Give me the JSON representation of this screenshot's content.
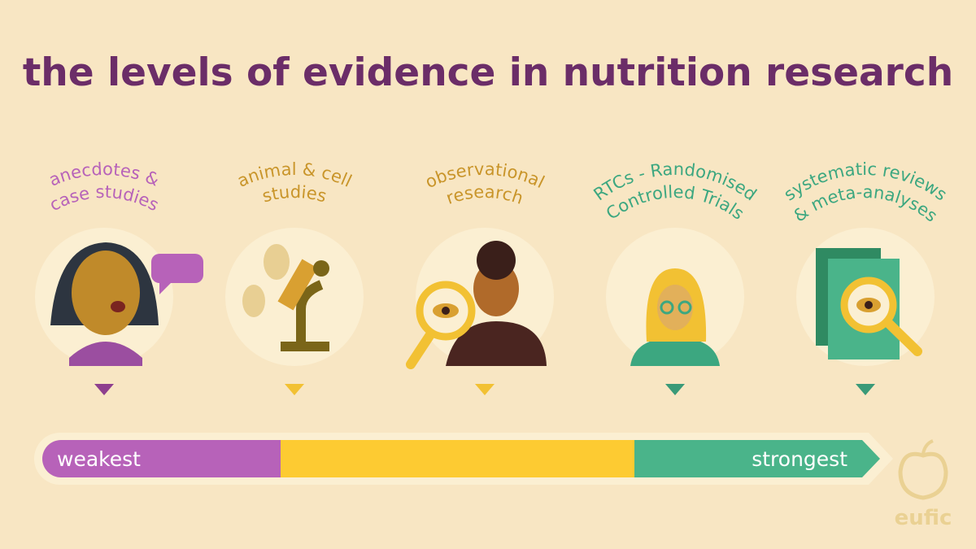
{
  "title": "the levels of evidence in nutrition research",
  "levels": [
    {
      "lines": [
        "anecdotes &",
        "case studies"
      ]
    },
    {
      "lines": [
        "animal & cell",
        "studies"
      ]
    },
    {
      "lines": [
        "observational",
        "research"
      ]
    },
    {
      "lines": [
        "RTCs - Randomised",
        "Controlled Trials"
      ]
    },
    {
      "lines": [
        "systematic reviews",
        "& meta-analyses"
      ]
    }
  ],
  "scale": {
    "low": "weakest",
    "high": "strongest"
  },
  "logo": "eufic"
}
